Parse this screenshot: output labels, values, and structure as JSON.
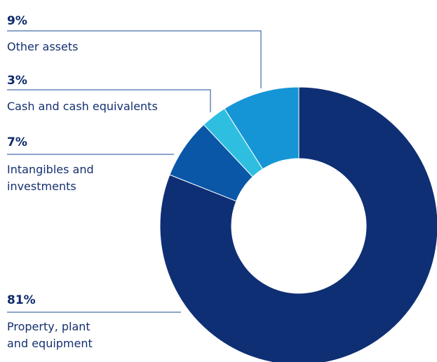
{
  "chart_data": {
    "type": "pie",
    "title": "",
    "donut": true,
    "slices": [
      {
        "label": "Property, plant and equipment",
        "label_lines": [
          "Property, plant",
          "and equipment"
        ],
        "value": 81,
        "display": "81%",
        "color": "#0f2f74"
      },
      {
        "label": "Intangibles and investments",
        "label_lines": [
          "Intangibles and",
          "investments"
        ],
        "value": 7,
        "display": "7%",
        "color": "#0a57a8"
      },
      {
        "label": "Cash and cash equivalents",
        "label_lines": [
          "Cash and cash equivalents"
        ],
        "value": 3,
        "display": "3%",
        "color": "#2ebfe0"
      },
      {
        "label": "Other assets",
        "label_lines": [
          "Other assets"
        ],
        "value": 9,
        "display": "9%",
        "color": "#1595d6"
      }
    ]
  }
}
